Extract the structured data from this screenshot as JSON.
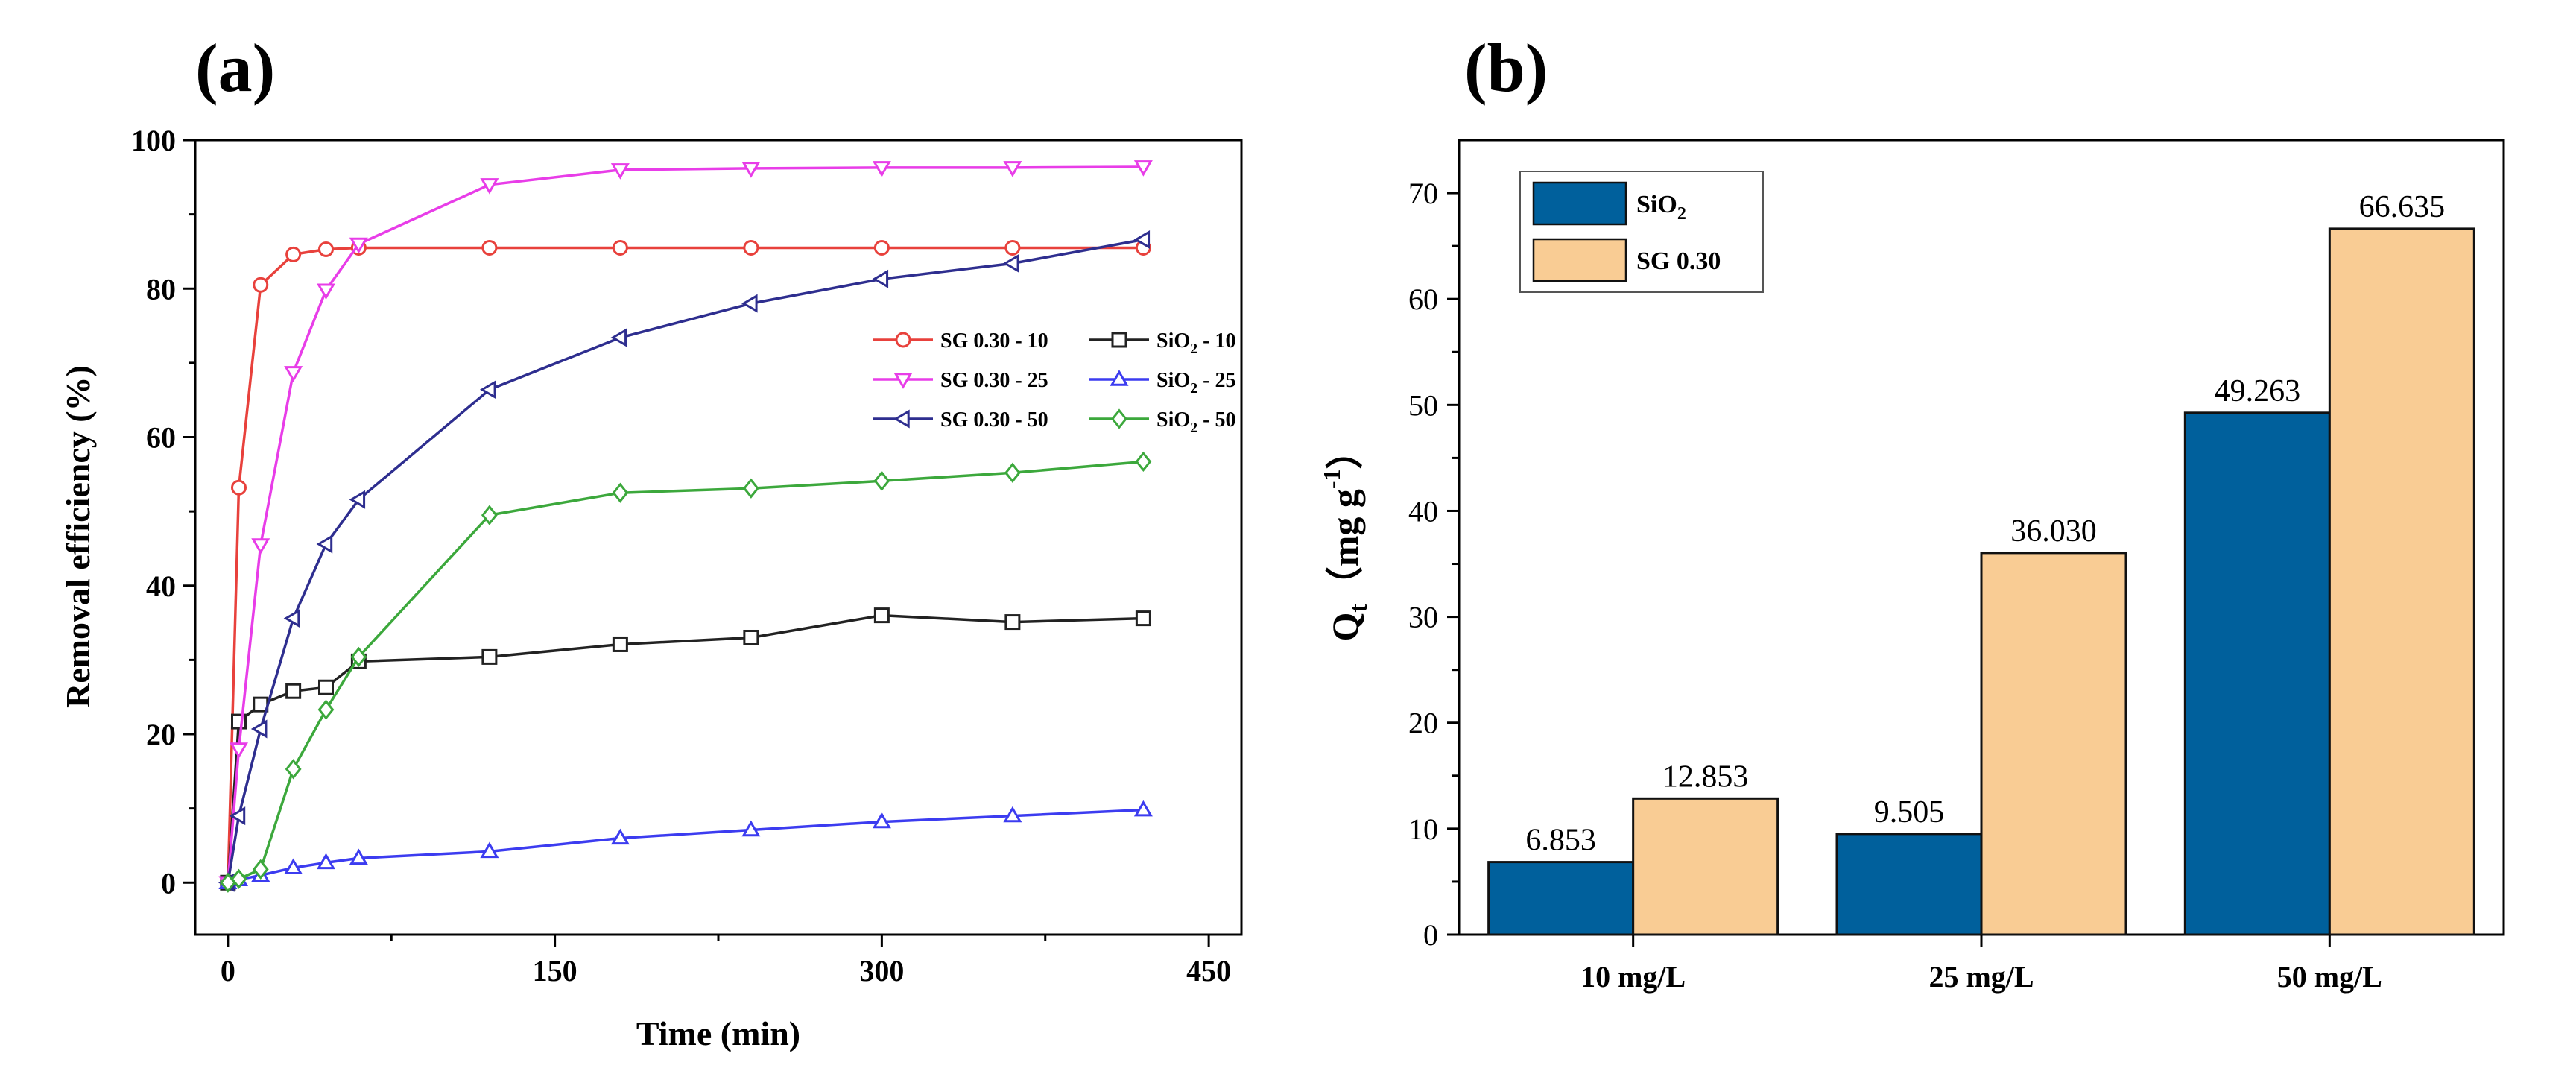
{
  "chart_data": [
    {
      "panel_label": "(a)",
      "type": "line",
      "xlabel": "Time (min)",
      "ylabel": "Removal efficiency (%)",
      "xlim": [
        -15,
        465
      ],
      "ylim": [
        -7,
        100
      ],
      "xticks": [
        "0",
        "150",
        "300",
        "450"
      ],
      "yticks": [
        "0",
        "20",
        "40",
        "60",
        "80",
        "100"
      ],
      "legend_position": "center-right",
      "series": [
        {
          "name": "SG 0.30 - 10",
          "label_main": "SG 0.30 - 10",
          "label_sub": "",
          "label_tail": "",
          "color": "#e8413c",
          "marker": "circle",
          "x": [
            0,
            5,
            15,
            30,
            45,
            60,
            120,
            180,
            240,
            300,
            360,
            420
          ],
          "y": [
            0,
            53.2,
            80.5,
            84.6,
            85.3,
            85.5,
            85.5,
            85.5,
            85.5,
            85.5,
            85.5,
            85.5
          ]
        },
        {
          "name": "SiO2 - 10",
          "label_main": "SiO",
          "label_sub": "2",
          "label_tail": " - 10",
          "color": "#222222",
          "marker": "square",
          "x": [
            0,
            5,
            15,
            30,
            45,
            60,
            120,
            180,
            240,
            300,
            360,
            420
          ],
          "y": [
            0,
            21.7,
            24.0,
            25.8,
            26.3,
            29.8,
            30.4,
            32.1,
            33.0,
            36.0,
            35.1,
            35.6
          ]
        },
        {
          "name": "SG 0.30 - 25",
          "label_main": "SG 0.30 - 25",
          "label_sub": "",
          "label_tail": "",
          "color": "#e83de8",
          "marker": "triangle-down",
          "x": [
            0,
            5,
            15,
            30,
            45,
            60,
            120,
            180,
            240,
            300,
            360,
            420
          ],
          "y": [
            0,
            18.0,
            45.5,
            68.7,
            79.8,
            86.0,
            94.0,
            96.0,
            96.2,
            96.3,
            96.3,
            96.4
          ]
        },
        {
          "name": "SiO2 - 25",
          "label_main": "SiO",
          "label_sub": "2",
          "label_tail": " - 25",
          "color": "#3c3cf0",
          "marker": "triangle-up",
          "x": [
            0,
            5,
            15,
            30,
            45,
            60,
            120,
            180,
            240,
            300,
            360,
            420
          ],
          "y": [
            0,
            0.4,
            1.0,
            2.0,
            2.7,
            3.3,
            4.2,
            6.0,
            7.1,
            8.2,
            9.0,
            9.8
          ]
        },
        {
          "name": "SG 0.30 - 50",
          "label_main": "SG 0.30 - 50",
          "label_sub": "",
          "label_tail": "",
          "color": "#2e2e8f",
          "marker": "triangle-left",
          "x": [
            0,
            5,
            15,
            30,
            45,
            60,
            120,
            180,
            240,
            300,
            360,
            420
          ],
          "y": [
            0,
            9.0,
            20.7,
            35.6,
            45.6,
            51.6,
            66.4,
            73.4,
            78.0,
            81.3,
            83.4,
            86.6
          ]
        },
        {
          "name": "SiO2 - 50",
          "label_main": "SiO",
          "label_sub": "2",
          "label_tail": " - 50",
          "color": "#3ca83c",
          "marker": "diamond",
          "x": [
            0,
            5,
            15,
            30,
            45,
            60,
            120,
            180,
            240,
            300,
            360,
            420
          ],
          "y": [
            0,
            0.5,
            1.8,
            15.3,
            23.3,
            30.4,
            49.5,
            52.5,
            53.1,
            54.1,
            55.2,
            56.7
          ]
        }
      ]
    },
    {
      "panel_label": "(b)",
      "type": "bar",
      "ylabel_main": "Q",
      "ylabel_sub": "t",
      "ylabel_unit": "（mg g",
      "ylabel_sup": "-1",
      "ylabel_close": "）",
      "categories": [
        "10 mg/L",
        "25 mg/L",
        "50 mg/L"
      ],
      "ylim": [
        0,
        75
      ],
      "yticks": [
        "0",
        "10",
        "20",
        "30",
        "40",
        "50",
        "60",
        "70"
      ],
      "legend_position": "top-left",
      "series": [
        {
          "name": "SiO2",
          "label_main": "SiO",
          "label_sub": "2",
          "color": "#00609c",
          "values": [
            6.853,
            9.505,
            49.263
          ],
          "value_labels": [
            "6.853",
            "9.505",
            "49.263"
          ]
        },
        {
          "name": "SG 0.30",
          "label_main": "SG 0.30",
          "label_sub": "",
          "color": "#f9cc94",
          "values": [
            12.853,
            36.03,
            66.635
          ],
          "value_labels": [
            "12.853",
            "36.030",
            "66.635"
          ]
        }
      ]
    }
  ]
}
